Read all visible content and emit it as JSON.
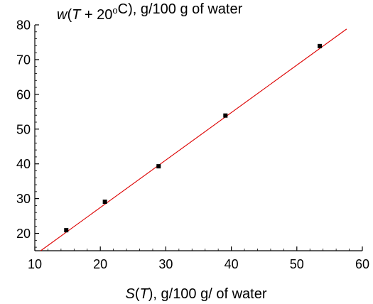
{
  "chart_data": {
    "type": "scatter",
    "title": "",
    "ylabel": {
      "parts": [
        {
          "text": "w",
          "style": "italic"
        },
        {
          "text": "(",
          "style": "normal"
        },
        {
          "text": "T",
          "style": "italic"
        },
        {
          "text": " + 20",
          "style": "normal"
        },
        {
          "text": "o",
          "style": "sup"
        },
        {
          "text": "C), g/100 g of water",
          "style": "normal"
        }
      ]
    },
    "xlabel": {
      "parts": [
        {
          "text": "S",
          "style": "italic"
        },
        {
          "text": "(",
          "style": "normal"
        },
        {
          "text": "T",
          "style": "italic"
        },
        {
          "text": "), g/100 g/ of water",
          "style": "normal"
        }
      ]
    },
    "xlim": [
      10,
      60
    ],
    "ylim": [
      15,
      80
    ],
    "xticks": [
      "10",
      "20",
      "30",
      "40",
      "50",
      "60"
    ],
    "yticks": [
      "20",
      "30",
      "40",
      "50",
      "60",
      "70",
      "80"
    ],
    "grid": false,
    "series": [
      {
        "kind": "points",
        "color": "#000000",
        "x": [
          14.8,
          20.7,
          28.9,
          39.1,
          53.5
        ],
        "y": [
          20.9,
          29.1,
          39.3,
          53.9,
          73.9
        ]
      },
      {
        "kind": "line",
        "color": "#dd0000",
        "x": [
          10.9,
          57.6
        ],
        "y": [
          15,
          78.8
        ]
      }
    ]
  }
}
